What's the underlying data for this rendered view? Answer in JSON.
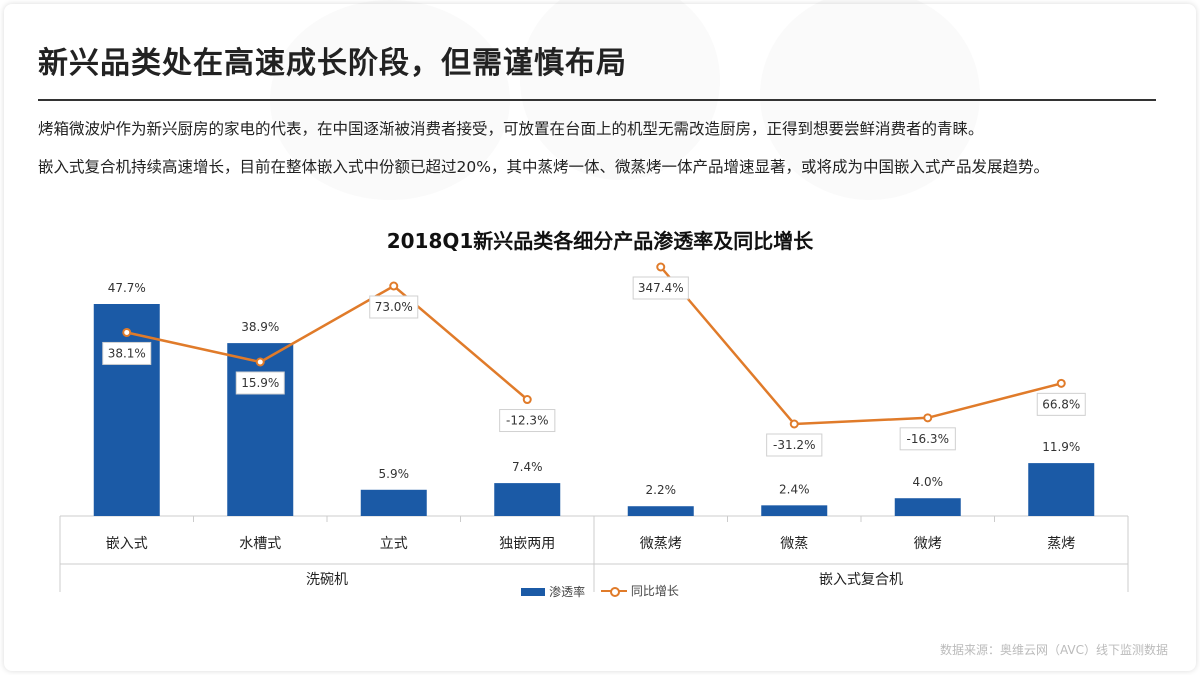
{
  "slide": {
    "title": "新兴品类处在高速成长阶段，但需谨慎布局",
    "paragraph_1": "烤箱微波炉作为新兴厨房的家电的代表，在中国逐渐被消费者接受，可放置在台面上的机型无需改造厨房，正得到想要尝鲜消费者的青睐。",
    "paragraph_2": "嵌入式复合机持续高速增长，目前在整体嵌入式中份额已超过20%，其中蒸烤一体、微蒸烤一体产品增速显著，或将成为中国嵌入式产品发展趋势。",
    "source": "数据来源：奥维云网（AVC）线下监测数据"
  },
  "colors": {
    "bar": "#1b5aa6",
    "line": "#e07b2a",
    "axis": "#cccccc",
    "label_text": "#333333"
  },
  "chart_data": {
    "type": "bar",
    "title": "2018Q1新兴品类各细分产品渗透率及同比增长",
    "categories": [
      "嵌入式",
      "水槽式",
      "立式",
      "独嵌两用",
      "微蒸烤",
      "微蒸",
      "微烤",
      "蒸烤"
    ],
    "groups": [
      {
        "name": "洗碗机",
        "categories": [
          "嵌入式",
          "水槽式",
          "立式",
          "独嵌两用"
        ]
      },
      {
        "name": "嵌入式复合机",
        "categories": [
          "微蒸烤",
          "微蒸",
          "微烤",
          "蒸烤"
        ]
      }
    ],
    "series": [
      {
        "name": "渗透率",
        "type": "bar",
        "values": [
          47.7,
          38.9,
          5.9,
          7.4,
          2.2,
          2.4,
          4.0,
          11.9
        ],
        "labels": [
          "47.7%",
          "38.9%",
          "5.9%",
          "7.4%",
          "2.2%",
          "2.4%",
          "4.0%",
          "11.9%"
        ]
      },
      {
        "name": "同比增长",
        "type": "line",
        "segments": [
          [
            0,
            3
          ],
          [
            4,
            7
          ]
        ],
        "values": [
          38.1,
          15.9,
          73.0,
          -12.3,
          347.4,
          -31.2,
          -16.3,
          66.8
        ],
        "labels": [
          "38.1%",
          "15.9%",
          "73.0%",
          "-12.3%",
          "347.4%",
          "-31.2%",
          "-16.3%",
          "66.8%"
        ]
      }
    ],
    "legend": [
      "渗透率",
      "同比增长"
    ],
    "legend_position": "bottom"
  }
}
